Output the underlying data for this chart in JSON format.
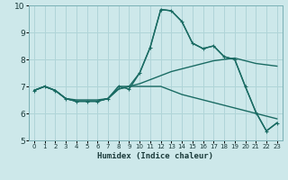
{
  "xlabel": "Humidex (Indice chaleur)",
  "xlim": [
    -0.5,
    23.5
  ],
  "ylim": [
    5,
    10
  ],
  "yticks": [
    5,
    6,
    7,
    8,
    9,
    10
  ],
  "xticks": [
    0,
    1,
    2,
    3,
    4,
    5,
    6,
    7,
    8,
    9,
    10,
    11,
    12,
    13,
    14,
    15,
    16,
    17,
    18,
    19,
    20,
    21,
    22,
    23
  ],
  "bg_color": "#cde8ea",
  "line_color": "#1a6b63",
  "grid_color": "#b0d4d8",
  "lines": [
    {
      "x": [
        0,
        1,
        2,
        3,
        4,
        5,
        6,
        7,
        8,
        9,
        10,
        11,
        12,
        13,
        14,
        15,
        16,
        17,
        18,
        19,
        20,
        21,
        22,
        23
      ],
      "y": [
        6.85,
        7.0,
        6.85,
        6.55,
        6.45,
        6.45,
        6.45,
        6.55,
        7.0,
        6.9,
        7.5,
        8.45,
        9.85,
        9.8,
        9.4,
        8.6,
        8.4,
        8.5,
        8.1,
        8.0,
        7.0,
        6.05,
        5.35,
        5.65
      ],
      "marker": "+",
      "lw": 1.0
    },
    {
      "x": [
        0,
        1,
        2,
        3,
        4,
        5,
        6,
        7,
        8,
        9,
        10,
        11,
        12,
        13,
        14,
        15,
        16,
        17,
        18,
        19,
        20,
        21,
        22,
        23
      ],
      "y": [
        6.85,
        7.0,
        6.85,
        6.55,
        6.45,
        6.45,
        6.45,
        6.55,
        7.0,
        7.0,
        7.5,
        8.45,
        9.85,
        9.8,
        9.4,
        8.6,
        8.4,
        8.5,
        8.1,
        8.0,
        7.0,
        6.05,
        5.35,
        5.65
      ],
      "marker": null,
      "lw": 1.0
    },
    {
      "x": [
        0,
        1,
        2,
        3,
        4,
        5,
        6,
        7,
        8,
        9,
        10,
        11,
        12,
        13,
        14,
        15,
        16,
        17,
        18,
        19,
        20,
        21,
        22,
        23
      ],
      "y": [
        6.85,
        7.0,
        6.85,
        6.55,
        6.5,
        6.5,
        6.5,
        6.55,
        6.9,
        7.0,
        7.1,
        7.25,
        7.4,
        7.55,
        7.65,
        7.75,
        7.85,
        7.95,
        8.0,
        8.05,
        7.95,
        7.85,
        7.8,
        7.75
      ],
      "marker": null,
      "lw": 1.0
    },
    {
      "x": [
        0,
        1,
        2,
        3,
        4,
        5,
        6,
        7,
        8,
        9,
        10,
        11,
        12,
        13,
        14,
        15,
        16,
        17,
        18,
        19,
        20,
        21,
        22,
        23
      ],
      "y": [
        6.85,
        7.0,
        6.85,
        6.55,
        6.45,
        6.45,
        6.45,
        6.55,
        6.9,
        7.0,
        7.0,
        7.0,
        7.0,
        6.85,
        6.7,
        6.6,
        6.5,
        6.4,
        6.3,
        6.2,
        6.1,
        6.0,
        5.9,
        5.8
      ],
      "marker": null,
      "lw": 1.0
    }
  ]
}
